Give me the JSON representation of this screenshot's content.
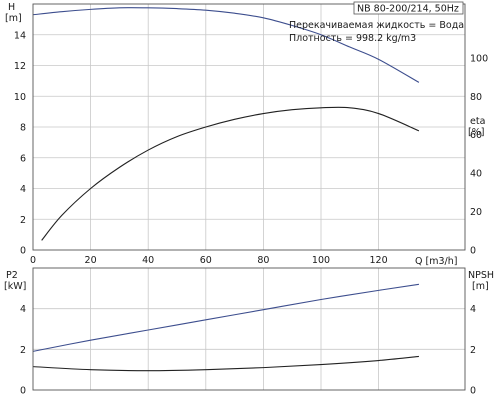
{
  "chart_data": [
    {
      "type": "line",
      "title": "NB 80-200/214, 50Hz",
      "annotations": [
        "Перекачиваемая жидкость = Вода",
        "Плотность = 998.2 kg/m3"
      ],
      "xlabel": "Q [m3/h]",
      "x_ticks": [
        "0",
        "20",
        "40",
        "60",
        "80",
        "100",
        "120"
      ],
      "xlim": [
        0,
        150
      ],
      "left_axis": {
        "label_line1": "H",
        "label_line2": "[m]",
        "ylim": [
          0,
          16
        ],
        "ticks": [
          "0",
          "2",
          "4",
          "6",
          "8",
          "10",
          "12",
          "14"
        ]
      },
      "right_axis": {
        "label_line1": "eta",
        "label_line2": "[%]",
        "ylim": [
          0,
          128
        ],
        "ticks": [
          "0",
          "20",
          "40",
          "60",
          "80",
          "100"
        ]
      },
      "grid": true,
      "series": [
        {
          "color": "#3d4e8e",
          "axis": "left",
          "x": [
            0,
            10,
            20,
            30,
            40,
            50,
            60,
            70,
            80,
            90,
            100,
            110,
            120,
            134
          ],
          "y": [
            15.3,
            15.5,
            15.65,
            15.75,
            15.75,
            15.7,
            15.6,
            15.4,
            15.1,
            14.6,
            14.0,
            13.2,
            12.4,
            10.9
          ]
        },
        {
          "color": "#222222",
          "axis": "right",
          "x": [
            3,
            10,
            20,
            30,
            40,
            50,
            60,
            70,
            80,
            90,
            100,
            110,
            120,
            134
          ],
          "y": [
            5,
            18,
            32,
            43,
            52,
            59,
            64,
            68,
            71,
            73,
            74,
            74,
            71,
            62
          ]
        }
      ]
    },
    {
      "type": "line",
      "xlim": [
        0,
        150
      ],
      "x_ticks": [
        "0",
        "20",
        "40",
        "60",
        "80",
        "100",
        "120"
      ],
      "left_axis": {
        "label_line1": "P2",
        "label_line2": "[kW]",
        "ylim": [
          0,
          6
        ],
        "ticks": [
          "0",
          "2",
          "4"
        ]
      },
      "right_axis": {
        "label_line1": "NPSH",
        "label_line2": "[m]",
        "ylim": [
          0,
          6
        ],
        "ticks": [
          "0",
          "2",
          "4"
        ]
      },
      "grid": true,
      "series": [
        {
          "color": "#3d4e8e",
          "axis": "left",
          "x": [
            0,
            20,
            40,
            60,
            80,
            100,
            120,
            134
          ],
          "y": [
            1.9,
            2.45,
            2.95,
            3.45,
            3.95,
            4.45,
            4.9,
            5.2
          ]
        },
        {
          "color": "#222222",
          "axis": "right",
          "x": [
            0,
            20,
            40,
            60,
            80,
            100,
            120,
            134
          ],
          "y": [
            1.15,
            1.0,
            0.95,
            1.0,
            1.1,
            1.25,
            1.45,
            1.65
          ]
        }
      ]
    }
  ]
}
